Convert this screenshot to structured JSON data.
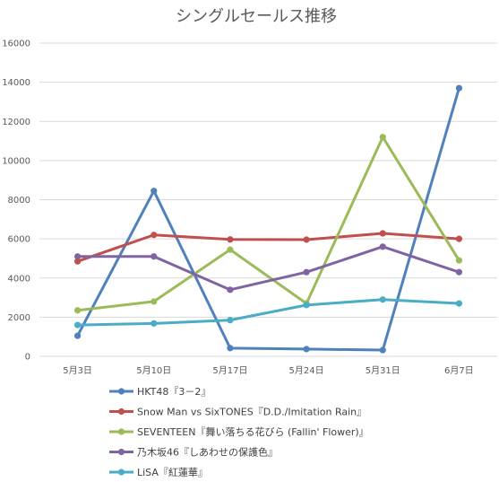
{
  "chart_data": {
    "type": "line",
    "title": "シングルセールス推移",
    "categories": [
      "5月3日",
      "5月10日",
      "5月17日",
      "5月24日",
      "5月31日",
      "6月7日"
    ],
    "ylim": [
      0,
      16000
    ],
    "yticks": [
      0,
      2000,
      4000,
      6000,
      8000,
      10000,
      12000,
      14000,
      16000
    ],
    "grid": true,
    "legend_position": "bottom",
    "series": [
      {
        "name": "HKT48『3－2』",
        "color": "#4f81bd",
        "values": [
          1050,
          8450,
          420,
          370,
          320,
          13700
        ]
      },
      {
        "name": "Snow Man vs SixTONES『D.D./Imitation Rain』",
        "color": "#c0504d",
        "values": [
          4850,
          6200,
          5970,
          5960,
          6280,
          6000
        ]
      },
      {
        "name": "SEVENTEEN『舞い落ちる花びら (Fallin' Flower)』",
        "color": "#9bbb59",
        "values": [
          2350,
          2800,
          5450,
          2700,
          11200,
          4900
        ]
      },
      {
        "name": "乃木坂46『しあわせの保護色』",
        "color": "#8064a2",
        "values": [
          5100,
          5100,
          3400,
          4300,
          5600,
          4300
        ]
      },
      {
        "name": "LiSA『紅蓮華』",
        "color": "#4bacc6",
        "values": [
          1600,
          1680,
          1850,
          2620,
          2900,
          2700
        ]
      }
    ]
  }
}
